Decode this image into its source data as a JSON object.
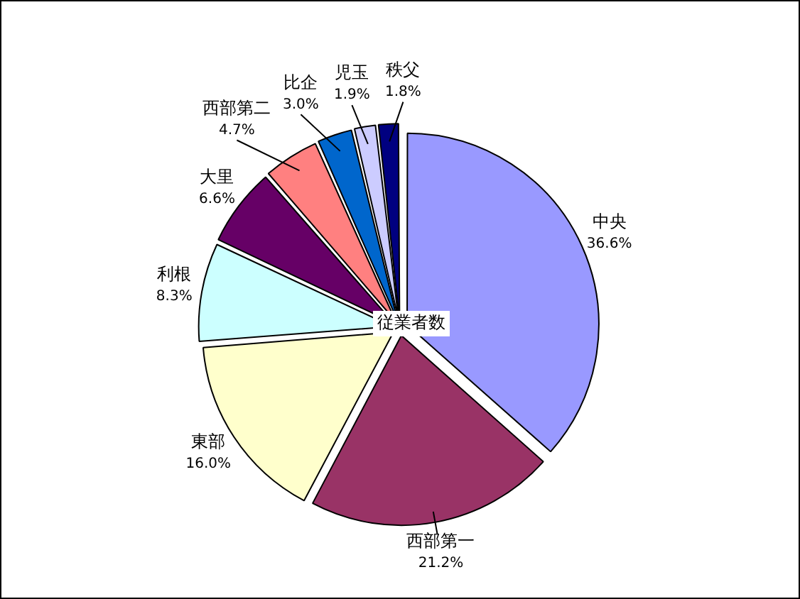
{
  "chart_data": {
    "type": "pie",
    "title": "従業者数",
    "categories": [
      "中央",
      "西部第一",
      "東部",
      "利根",
      "大里",
      "西部第二",
      "比企",
      "児玉",
      "秩父"
    ],
    "values": [
      36.6,
      21.2,
      16.0,
      8.3,
      6.6,
      4.7,
      3.0,
      1.9,
      1.8
    ],
    "value_labels": [
      "36.6%",
      "21.2%",
      "16.0%",
      "8.3%",
      "6.6%",
      "4.7%",
      "3.0%",
      "1.9%",
      "1.8%"
    ],
    "colors": [
      "#9999ff",
      "#993366",
      "#ffffcc",
      "#ccffff",
      "#660066",
      "#ff8080",
      "#0066cc",
      "#ccccff",
      "#000080"
    ],
    "legend": false
  }
}
